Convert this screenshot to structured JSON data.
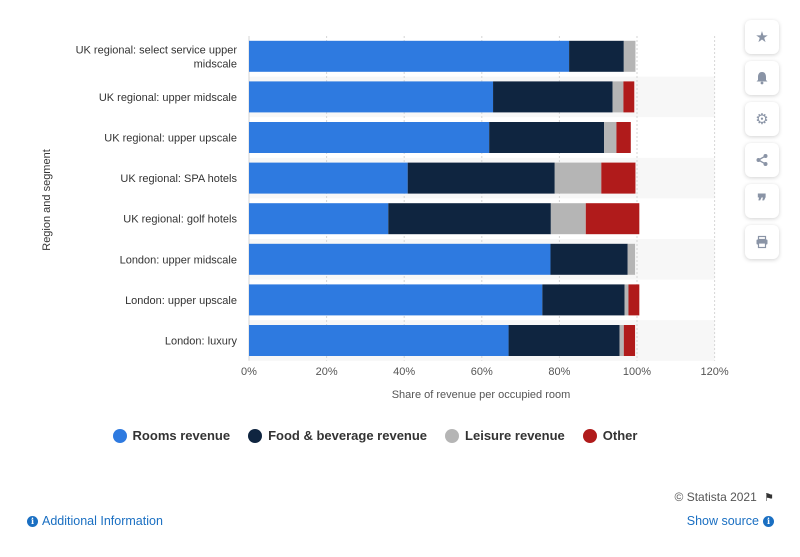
{
  "chart_data": {
    "type": "bar",
    "orientation": "horizontal",
    "stacked": true,
    "categories": [
      "UK regional: select service upper midscale",
      "UK regional: upper midscale",
      "UK regional: upper upscale",
      "UK regional: SPA hotels",
      "UK regional: golf hotels",
      "London: upper midscale",
      "London: upper upscale",
      "London: luxury"
    ],
    "series": [
      {
        "name": "Rooms revenue",
        "color": "#2e7ae0",
        "values": [
          82.5,
          62.9,
          61.9,
          40.9,
          35.9,
          77.7,
          75.6,
          66.9
        ]
      },
      {
        "name": "Food & beverage revenue",
        "color": "#0f2540",
        "values": [
          14.1,
          30.8,
          29.6,
          37.9,
          41.9,
          19.9,
          21.2,
          28.6
        ]
      },
      {
        "name": "Leisure revenue",
        "color": "#b5b5b5",
        "values": [
          3.0,
          2.8,
          3.2,
          12.0,
          9.0,
          1.9,
          1.0,
          1.1
        ]
      },
      {
        "name": "Other",
        "color": "#b01b1b",
        "values": [
          0.0,
          2.8,
          3.7,
          8.8,
          13.8,
          0.0,
          2.8,
          2.9
        ]
      }
    ],
    "xlabel": "Share of revenue per occupied room",
    "ylabel": "Region and segment",
    "xlim": [
      0,
      120
    ],
    "xticks": [
      "0%",
      "20%",
      "40%",
      "60%",
      "80%",
      "100%",
      "120%"
    ],
    "grid": true,
    "legend_position": "bottom"
  },
  "toolbar": {
    "icons": [
      "star-icon",
      "bell-icon",
      "gear-icon",
      "share-icon",
      "quote-icon",
      "print-icon"
    ]
  },
  "footer": {
    "credit": "© Statista 2021",
    "additional_info": "Additional Information",
    "show_source": "Show source"
  }
}
